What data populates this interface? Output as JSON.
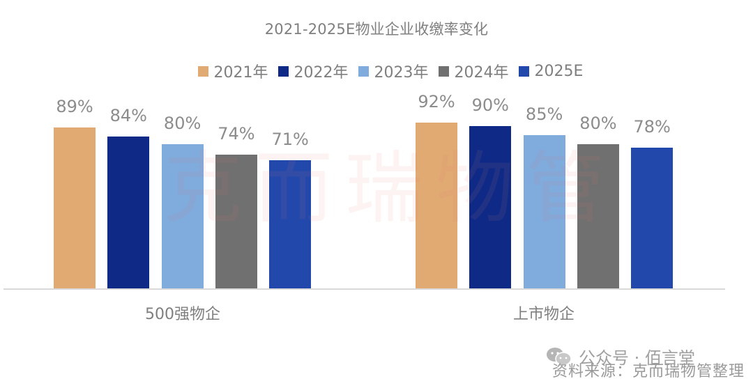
{
  "chart_data": {
    "type": "bar",
    "title": "2021-2025E物业企业收缴率变化",
    "categories": [
      "500强物企",
      "上市物企"
    ],
    "series": [
      {
        "name": "2021年",
        "color": "#e0aa72",
        "values": [
          89,
          92
        ]
      },
      {
        "name": "2022年",
        "color": "#0e2a86",
        "values": [
          84,
          90
        ]
      },
      {
        "name": "2023年",
        "color": "#7fabdd",
        "values": [
          80,
          85
        ]
      },
      {
        "name": "2024年",
        "color": "#707070",
        "values": [
          74,
          80
        ]
      },
      {
        "name": "2025E",
        "color": "#2248ab",
        "values": [
          71,
          78
        ]
      }
    ],
    "value_labels": [
      [
        "89%",
        "92%"
      ],
      [
        "84%",
        "90%"
      ],
      [
        "80%",
        "85%"
      ],
      [
        "74%",
        "80%"
      ],
      [
        "71%",
        "78%"
      ]
    ],
    "xlabel": "",
    "ylabel": "",
    "ylim": [
      0,
      100
    ],
    "unit": "%",
    "grid": false,
    "legend_position": "top"
  },
  "watermark": "克而瑞物管",
  "footer": {
    "wechat": "公众号 · 佰言堂",
    "source": "资料来源：克而瑞物管整理"
  }
}
